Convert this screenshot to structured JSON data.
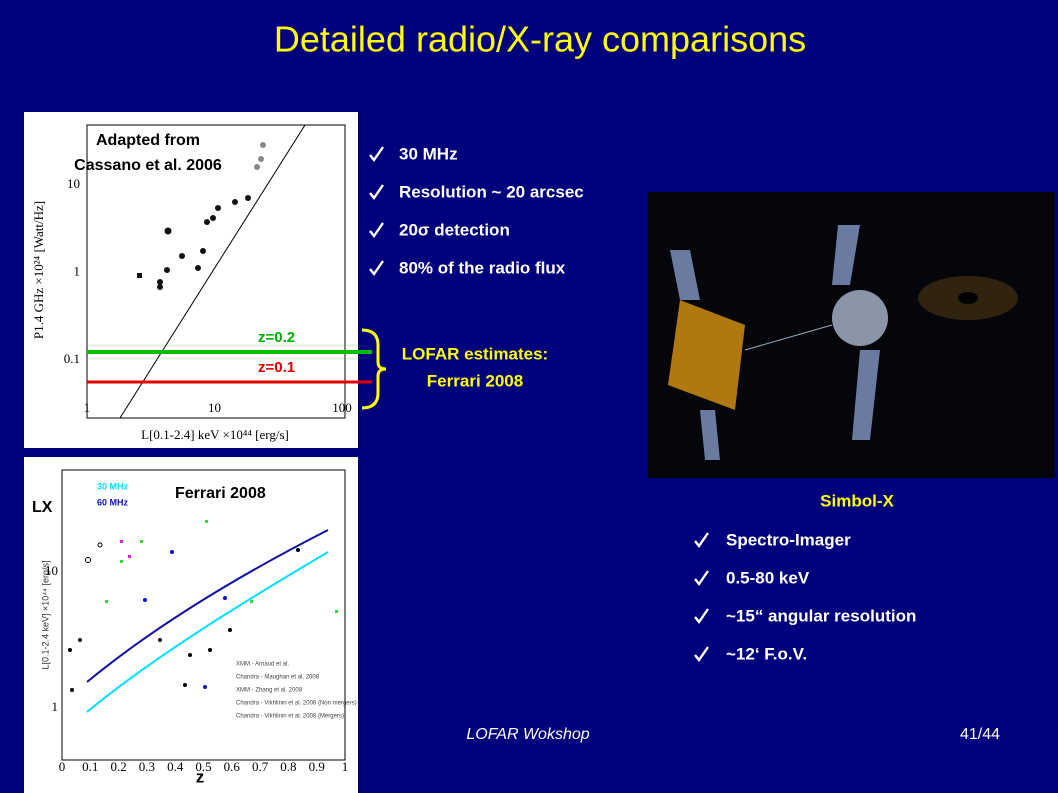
{
  "title": "Detailed radio/X-ray comparisons",
  "bullets_top": [
    "30 MHz",
    "Resolution ~ 20 arcsec",
    "20σ detection",
    "80% of the radio flux"
  ],
  "lofar_estimates": [
    "LOFAR estimates:",
    "Ferrari 2008"
  ],
  "simbol": {
    "title": "Simbol-X",
    "bullets": [
      "Spectro-Imager",
      "0.5-80 keV",
      "~15“ angular resolution",
      "~12‘ F.o.V."
    ]
  },
  "footer": {
    "event": "LOFAR Wokshop",
    "page": "41/44"
  },
  "plot_top": {
    "note": [
      "Adapted from",
      "Cassano et al. 2006"
    ],
    "z_high": "z=0.2",
    "z_low": "z=0.1",
    "xticks": [
      "1",
      "10",
      "100"
    ],
    "yticks": [
      "10",
      "1",
      "0.1"
    ],
    "xlabel": "L[0.1-2.4] keV ×10⁴⁴ [erg/s]",
    "ylabel": "P1.4 GHz ×10²⁴ [Watt/Hz]"
  },
  "plot_bottom": {
    "source": "Ferrari 2008",
    "ylabel": "LX",
    "xlabel": "z",
    "legend": [
      "30 MHz",
      "60 MHz"
    ],
    "xticks": [
      "0",
      "0.1",
      "0.2",
      "0.3",
      "0.4",
      "0.5",
      "0.6",
      "0.7",
      "0.8",
      "0.9",
      "1"
    ],
    "yticks": [
      "10",
      "1"
    ],
    "samples": [
      "XMM - Arnaud et al.",
      "Chandra - Maughan et al. 2008",
      "XMM - Zhang et al. 2008",
      "Chandra - Vikhlinin et al. 2008 (Non mergers)",
      "Chandra - Vikhlinin et al. 2008 (Mergers)"
    ],
    "axis_label": "L[0.1-2.4 keV] ×10⁴⁴ [erg/s]"
  }
}
